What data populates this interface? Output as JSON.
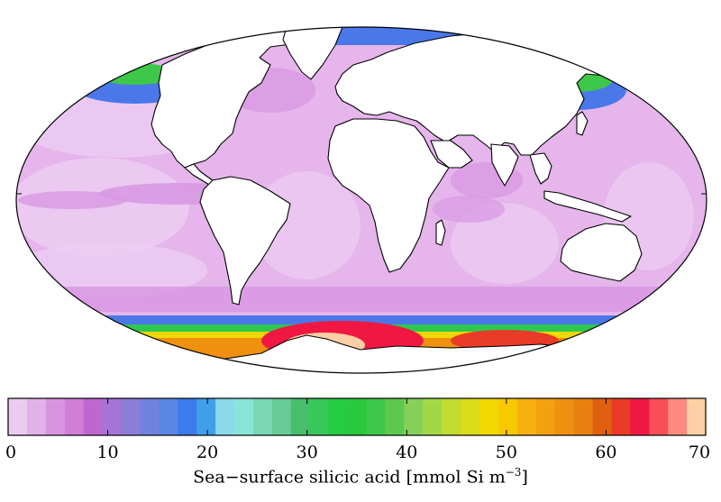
{
  "colorbar": {
    "min": 0,
    "max": 70,
    "ticks": [
      "0",
      "10",
      "20",
      "30",
      "40",
      "50",
      "60",
      "70"
    ],
    "title_main": "Sea−surface silicic acid [mmol Si m",
    "title_exp": "−3",
    "title_close": "]",
    "colors": [
      "#eccbf0",
      "#e3b1ea",
      "#d994e0",
      "#d07ed8",
      "#c066d0",
      "#a574d6",
      "#8c7ed8",
      "#6f83de",
      "#5a86e4",
      "#3c7aee",
      "#3f9fe8",
      "#8adaea",
      "#8ae4d8",
      "#7ad8b4",
      "#68cc98",
      "#46be6c",
      "#36c858",
      "#24cc42",
      "#28c93a",
      "#3ec84a",
      "#5ec84e",
      "#86d05a",
      "#a2d846",
      "#c0dc30",
      "#dcdc18",
      "#f0d800",
      "#f8c800",
      "#f8b010",
      "#f5a010",
      "#f09010",
      "#e88010",
      "#e06010",
      "#ea3a28",
      "#f01842",
      "#f84e5a",
      "#fd8a7e",
      "#fcd0a4"
    ]
  },
  "map": {
    "projection": "mollweide",
    "palette": {
      "land": "#ffffff",
      "coast": "#000000",
      "base_ocean": "#e5b5ec",
      "light_band": "#eccdf2",
      "mid_band": "#d998e4",
      "arctic_blue": "#4a78e8",
      "arctic_green": "#3ec84a",
      "southern_green": "#2ec850",
      "southern_yellow": "#f0d800",
      "southern_orange": "#f09010",
      "southern_red": "#f01842",
      "southern_peach": "#fcd0a4"
    }
  }
}
